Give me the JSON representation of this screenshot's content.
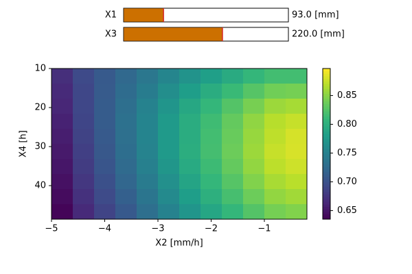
{
  "sliders": [
    {
      "label": "X1",
      "value": 93.0,
      "value_label": "93.0 [mm]",
      "xlim": [
        7,
        362
      ],
      "color": "#cc7000"
    },
    {
      "label": "X3",
      "value": 220.0,
      "value_label": "220.0 [mm]",
      "xlim": [
        7,
        362
      ],
      "color": "#cc7000"
    }
  ],
  "chart_data": {
    "type": "heatmap",
    "colormap": "viridis",
    "xlabel": "X2 [mm/h]",
    "ylabel": "X4 [h]",
    "x": [
      -4.8,
      -4.4,
      -4.0,
      -3.6,
      -3.2,
      -2.8,
      -2.4,
      -2.0,
      -1.6,
      -1.2,
      -0.8,
      -0.4
    ],
    "y": [
      11.93,
      15.79,
      19.65,
      23.51,
      27.37,
      31.23,
      35.09,
      38.95,
      42.81,
      46.67
    ],
    "values": [
      [
        0.67,
        0.693,
        0.709,
        0.723,
        0.739,
        0.755,
        0.769,
        0.782,
        0.795,
        0.808,
        0.817,
        0.817
      ],
      [
        0.666,
        0.691,
        0.71,
        0.727,
        0.745,
        0.764,
        0.781,
        0.797,
        0.812,
        0.827,
        0.84,
        0.842
      ],
      [
        0.663,
        0.691,
        0.711,
        0.73,
        0.751,
        0.771,
        0.791,
        0.808,
        0.826,
        0.843,
        0.858,
        0.862
      ],
      [
        0.66,
        0.689,
        0.711,
        0.732,
        0.754,
        0.776,
        0.797,
        0.815,
        0.834,
        0.853,
        0.869,
        0.875
      ],
      [
        0.657,
        0.687,
        0.709,
        0.731,
        0.754,
        0.776,
        0.797,
        0.817,
        0.836,
        0.856,
        0.872,
        0.881
      ],
      [
        0.654,
        0.684,
        0.707,
        0.729,
        0.752,
        0.776,
        0.798,
        0.818,
        0.838,
        0.858,
        0.875,
        0.882
      ],
      [
        0.651,
        0.681,
        0.704,
        0.726,
        0.749,
        0.772,
        0.794,
        0.814,
        0.834,
        0.854,
        0.871,
        0.878
      ],
      [
        0.647,
        0.677,
        0.699,
        0.721,
        0.744,
        0.766,
        0.788,
        0.808,
        0.827,
        0.847,
        0.863,
        0.87
      ],
      [
        0.643,
        0.672,
        0.694,
        0.715,
        0.737,
        0.76,
        0.781,
        0.8,
        0.819,
        0.838,
        0.854,
        0.86
      ],
      [
        0.638,
        0.666,
        0.688,
        0.708,
        0.73,
        0.751,
        0.771,
        0.79,
        0.808,
        0.826,
        0.842,
        0.847
      ]
    ],
    "xlim": [
      -5,
      -0.2
    ],
    "ylim": [
      48.6,
      10
    ],
    "xticks": [
      {
        "value": -5,
        "label": "−5"
      },
      {
        "value": -4,
        "label": "−4"
      },
      {
        "value": -3,
        "label": "−3"
      },
      {
        "value": -2,
        "label": "−2"
      },
      {
        "value": -1,
        "label": "−1"
      }
    ],
    "yticks": [
      10,
      20,
      30,
      40
    ],
    "colorbar": {
      "lim": [
        0.635,
        0.897
      ],
      "ticks": [
        0.65,
        {
          "value": 0.7,
          "label": "0.70"
        },
        0.75,
        {
          "value": 0.8,
          "label": "0.80"
        },
        0.85
      ]
    }
  }
}
